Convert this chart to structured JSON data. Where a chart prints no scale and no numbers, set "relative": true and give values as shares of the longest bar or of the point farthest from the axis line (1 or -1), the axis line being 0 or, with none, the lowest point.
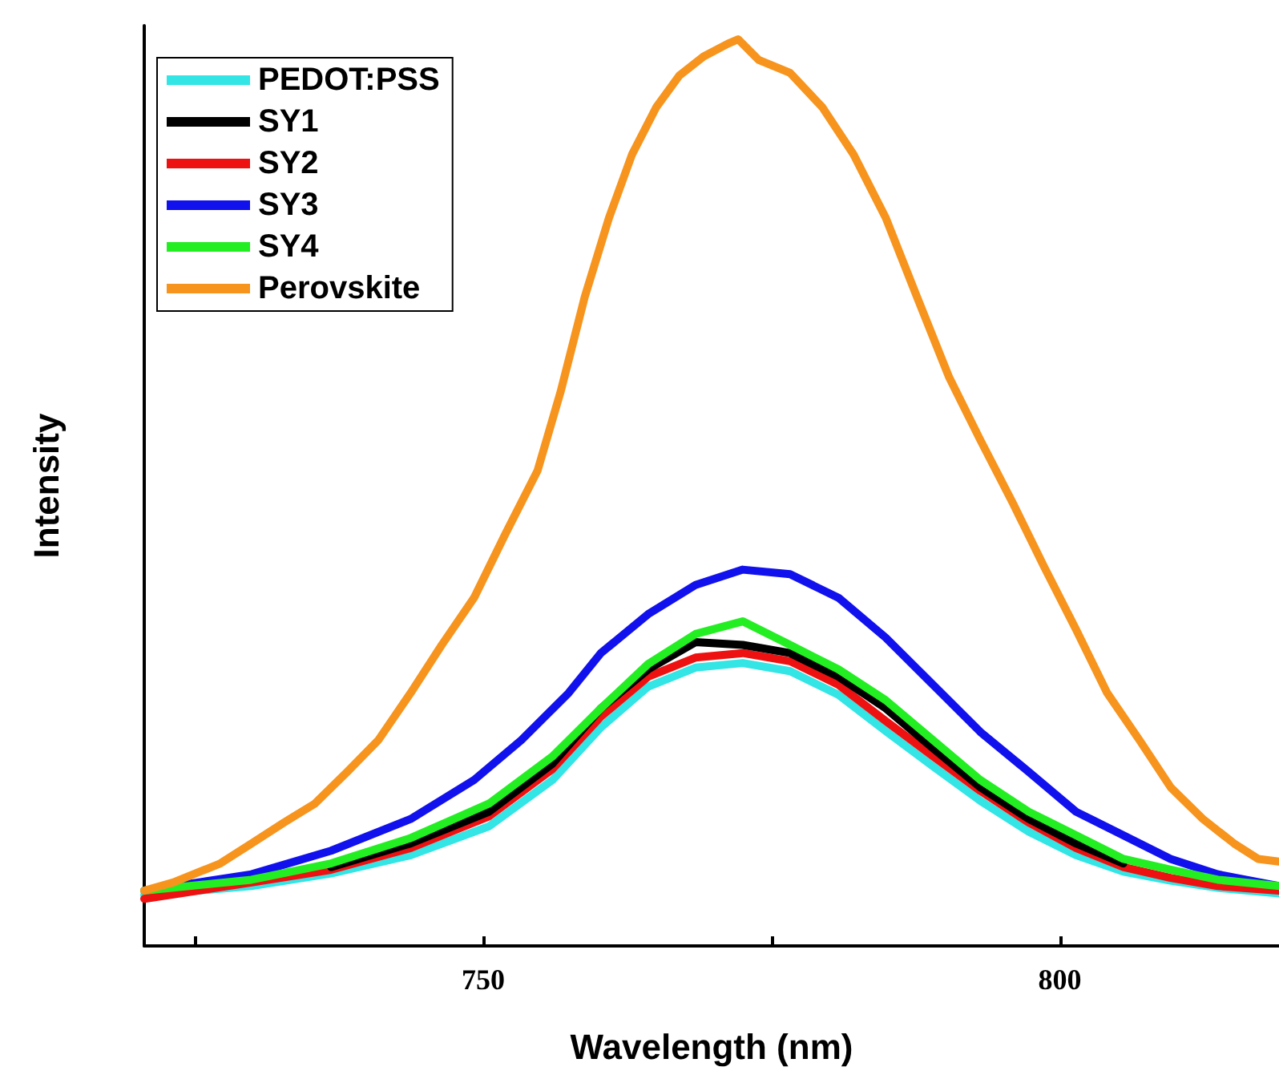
{
  "chart_data": {
    "type": "line",
    "xlabel": "Wavelength (nm)",
    "ylabel": "Intensity",
    "relative": true,
    "xlim": [
      720.6,
      819
    ],
    "xticks": [
      {
        "value": 725,
        "label": null
      },
      750,
      {
        "value": 775,
        "label": null
      },
      800
    ],
    "grid": false,
    "legend": "top left",
    "marker": "none",
    "line_style": "solid",
    "x": [
      720.6,
      729.9,
      736.8,
      743.7,
      750.5,
      756.0,
      760.2,
      764.3,
      768.4,
      772.5,
      776.6,
      780.8,
      784.9,
      789.0,
      793.1,
      797.3,
      801.4,
      805.5,
      809.6,
      813.7,
      819.0
    ],
    "series": [
      {
        "name": "PEDOT:PSS",
        "color": "#33e5e5",
        "values": [
          0.056,
          0.066,
          0.08,
          0.1,
          0.132,
          0.183,
          0.241,
          0.286,
          0.307,
          0.312,
          0.303,
          0.277,
          0.237,
          0.198,
          0.16,
          0.126,
          0.1,
          0.082,
          0.072,
          0.064,
          0.058
        ]
      },
      {
        "name": "SY1",
        "color": "#000000",
        "values": [
          null,
          null,
          0.087,
          0.113,
          0.148,
          0.201,
          0.262,
          0.305,
          0.335,
          0.332,
          0.323,
          0.297,
          0.262,
          0.218,
          0.175,
          0.14,
          0.113,
          0.091,
          null,
          null,
          null
        ]
      },
      {
        "name": "SY2",
        "color": "#ee1111",
        "values": [
          0.052,
          0.07,
          0.084,
          0.108,
          0.143,
          0.195,
          0.253,
          0.297,
          0.318,
          0.323,
          0.314,
          0.288,
          0.248,
          0.209,
          0.171,
          0.136,
          0.108,
          0.087,
          0.075,
          0.066,
          0.061
        ]
      },
      {
        "name": "SY3",
        "color": "#1111ee",
        "x": [
          720.6,
          729.9,
          736.8,
          743.7,
          749.2,
          753.3,
          757.4,
          760.2,
          764.3,
          768.4,
          772.5,
          776.6,
          780.8,
          784.9,
          789.0,
          793.1,
          797.3,
          801.4,
          805.5,
          809.6,
          813.7,
          819.0
        ],
        "values": [
          0.061,
          0.079,
          0.105,
          0.14,
          0.183,
          0.227,
          0.279,
          0.323,
          0.366,
          0.398,
          0.415,
          0.41,
          0.384,
          0.34,
          0.288,
          0.236,
          0.192,
          0.148,
          0.122,
          0.096,
          0.079,
          0.066
        ]
      },
      {
        "name": "SY4",
        "color": "#22ee22",
        "values": [
          0.061,
          0.073,
          0.091,
          0.119,
          0.157,
          0.209,
          0.262,
          0.311,
          0.344,
          0.358,
          0.332,
          0.305,
          0.271,
          0.227,
          0.183,
          0.148,
          0.122,
          0.096,
          0.084,
          0.073,
          0.066
        ]
      },
      {
        "name": "Perovskite",
        "color": "#f7941d",
        "x": [
          720.6,
          723.1,
          727.2,
          729.9,
          732.7,
          735.4,
          738.2,
          740.9,
          743.7,
          746.4,
          749.2,
          751.9,
          754.7,
          756.7,
          758.8,
          760.9,
          762.9,
          765.0,
          767.0,
          769.1,
          771.2,
          772.1,
          773.9,
          776.6,
          779.4,
          782.1,
          784.9,
          787.6,
          790.4,
          793.1,
          795.9,
          798.6,
          801.4,
          804.1,
          806.9,
          809.6,
          812.4,
          815.1,
          817.2,
          819.0
        ],
        "values": [
          0.061,
          0.07,
          0.091,
          0.113,
          0.136,
          0.157,
          0.192,
          0.227,
          0.279,
          0.332,
          0.384,
          0.454,
          0.524,
          0.611,
          0.716,
          0.803,
          0.873,
          0.925,
          0.96,
          0.981,
          0.995,
          1.0,
          0.977,
          0.963,
          0.925,
          0.873,
          0.803,
          0.716,
          0.627,
          0.558,
          0.489,
          0.419,
          0.349,
          0.279,
          0.227,
          0.175,
          0.14,
          0.113,
          0.096,
          0.093
        ]
      }
    ]
  }
}
